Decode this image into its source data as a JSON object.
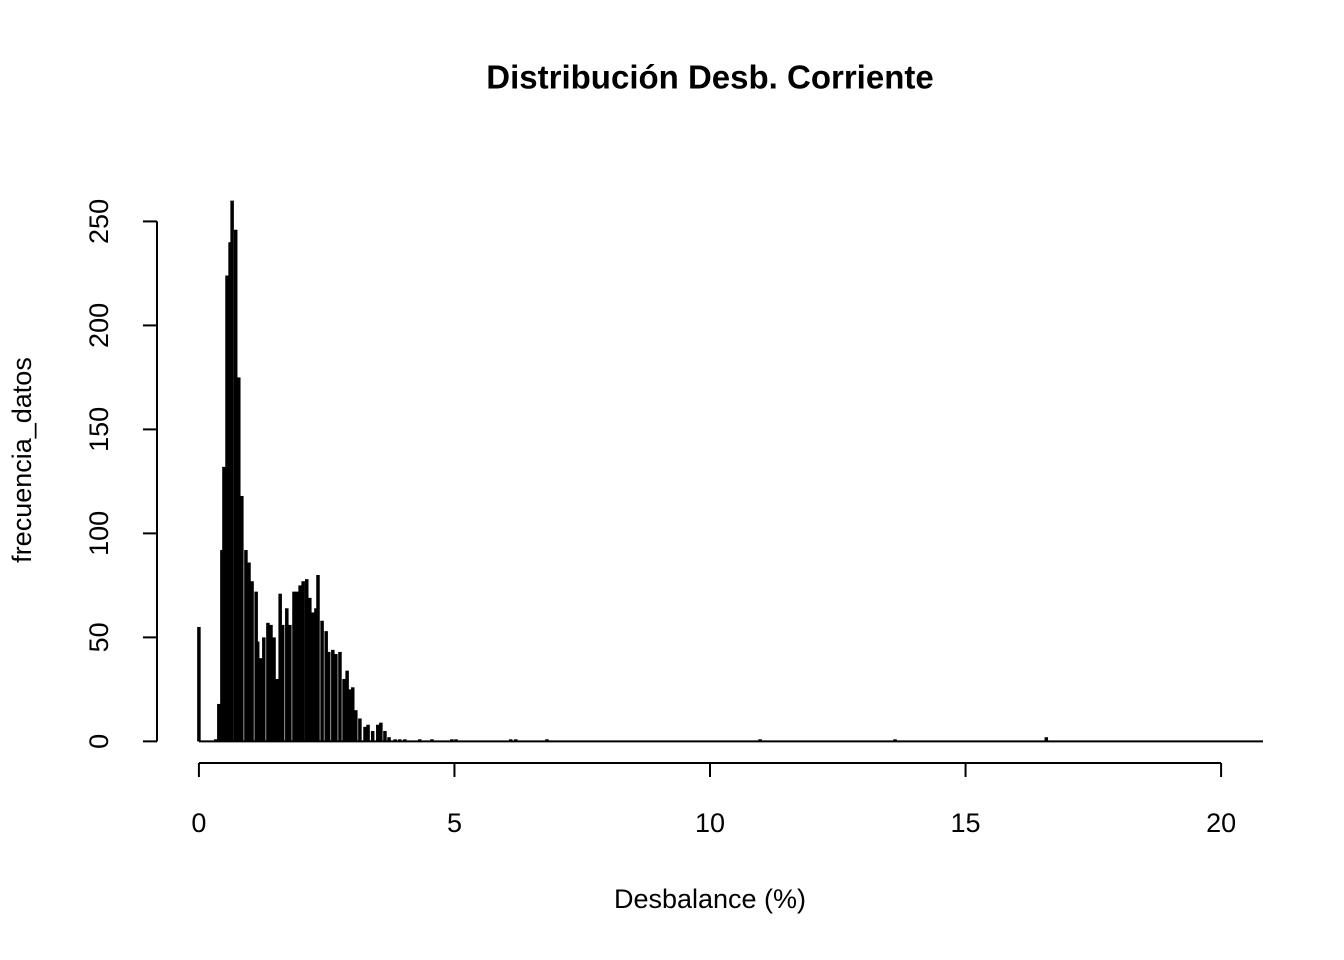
{
  "chart_data": {
    "type": "spike",
    "title": "Distribución Desb. Corriente",
    "x_label": "Desbalance (%)",
    "y_label": "frecuencia_datos",
    "color": "#000000",
    "x": [
      0,
      0.33,
      0.39,
      0.45,
      0.49,
      0.55,
      0.61,
      0.65,
      0.72,
      0.78,
      0.84,
      0.92,
      0.98,
      1.04,
      1.12,
      1.15,
      1.21,
      1.27,
      1.35,
      1.41,
      1.47,
      1.53,
      1.59,
      1.64,
      1.72,
      1.78,
      1.86,
      1.92,
      1.98,
      2.04,
      2.11,
      2.17,
      2.23,
      2.29,
      2.33,
      2.41,
      2.49,
      2.54,
      2.62,
      2.68,
      2.76,
      2.84,
      2.9,
      2.95,
      3.01,
      3.07,
      3.15,
      3.25,
      3.31,
      3.4,
      3.5,
      3.56,
      3.64,
      3.72,
      3.84,
      3.93,
      4.03,
      4.32,
      4.56,
      4.95,
      5.03,
      6.1,
      6.2,
      6.81,
      10.98,
      13.62,
      16.58
    ],
    "values": [
      55,
      1,
      18,
      92,
      132,
      224,
      240,
      260,
      246,
      175,
      118,
      92,
      86,
      77,
      72,
      48,
      40,
      50,
      57,
      56,
      50,
      30,
      71,
      56,
      64,
      56,
      72,
      72,
      75,
      77,
      78,
      69,
      62,
      64,
      80,
      58,
      53,
      43,
      44,
      42,
      43,
      30,
      34,
      25,
      26,
      15,
      11,
      7,
      8,
      5,
      8,
      9,
      5,
      2,
      1,
      1,
      1,
      1,
      1,
      1,
      1,
      1,
      1,
      1,
      1,
      1,
      2
    ],
    "xlim": [
      -0.82,
      20.82
    ],
    "ylim": [
      -10.4,
      270.4
    ],
    "xticks": [
      0,
      5,
      10,
      15,
      20
    ],
    "yticks": [
      0,
      50,
      100,
      150,
      200,
      250
    ]
  }
}
